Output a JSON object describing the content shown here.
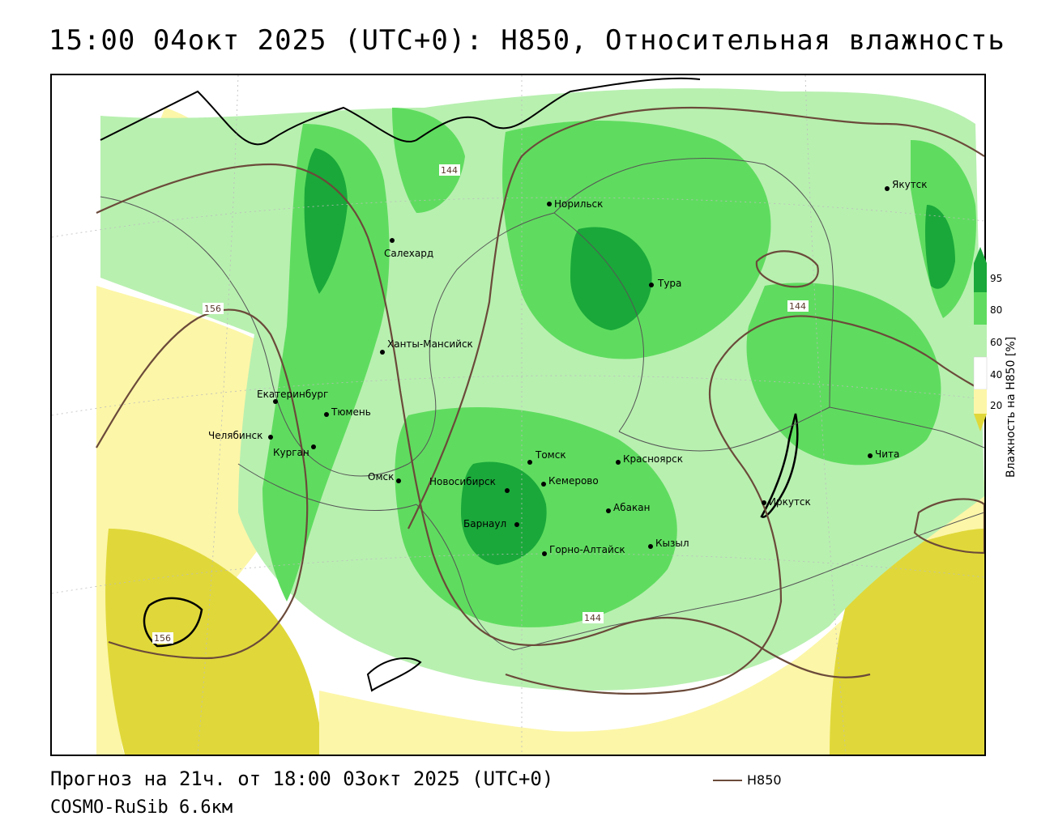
{
  "title": "15:00 04окт 2025 (UTC+0): H850, Относительная влажность",
  "footer": {
    "forecast": "Прогноз на 21ч. от 18:00 03окт 2025 (UTC+0)",
    "model": "COSMO-RuSib 6.6км",
    "contour_legend": "H850"
  },
  "legend": {
    "title": "Влажность на H850 [%]",
    "ticks": [
      "95",
      "80",
      "60",
      "40",
      "20"
    ]
  },
  "colors": {
    "very_dry": "#e0d83a",
    "dry": "#fcf6a8",
    "neutral": "#ffffff",
    "moist": "#b8f0b0",
    "wet": "#5fdc5f",
    "very_wet": "#1aa83a",
    "contour": "#6b4a3a"
  },
  "contour_labels": [
    "144",
    "156",
    "156",
    "144",
    "144"
  ],
  "cities": [
    {
      "name": "Норильск"
    },
    {
      "name": "Якутск"
    },
    {
      "name": "Салехард"
    },
    {
      "name": "Тура"
    },
    {
      "name": "Ханты-Мансийск"
    },
    {
      "name": "Екатеринбург"
    },
    {
      "name": "Тюмень"
    },
    {
      "name": "Челябинск"
    },
    {
      "name": "Курган"
    },
    {
      "name": "Омск"
    },
    {
      "name": "Новосибирск"
    },
    {
      "name": "Томск"
    },
    {
      "name": "Кемерово"
    },
    {
      "name": "Красноярск"
    },
    {
      "name": "Барнаул"
    },
    {
      "name": "Абакан"
    },
    {
      "name": "Горно-Алтайск"
    },
    {
      "name": "Кызыл"
    },
    {
      "name": "Иркутск"
    },
    {
      "name": "Чита"
    }
  ]
}
